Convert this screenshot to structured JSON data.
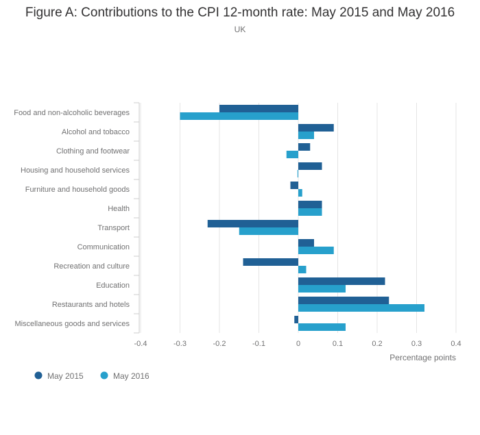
{
  "chart_data": {
    "type": "bar",
    "orientation": "horizontal",
    "title": "Figure A: Contributions to the CPI 12-month rate: May 2015 and May 2016",
    "subtitle": "UK",
    "xlabel": "Percentage points",
    "ylabel": "",
    "xlim": [
      -0.4,
      0.4
    ],
    "ticks": [
      "-0.4",
      "-0.3",
      "-0.2",
      "-0.1",
      "0",
      "0.1",
      "0.2",
      "0.3",
      "0.4"
    ],
    "tick_values": [
      -0.4,
      -0.3,
      -0.2,
      -0.1,
      0,
      0.1,
      0.2,
      0.3,
      0.4
    ],
    "grid": true,
    "legend_position": "bottom-left",
    "categories": [
      "Food and non-alcoholic beverages",
      "Alcohol and tobacco",
      "Clothing and footwear",
      "Housing and household services",
      "Furniture and household goods",
      "Health",
      "Transport",
      "Communication",
      "Recreation and culture",
      "Education",
      "Restaurants and hotels",
      "Miscellaneous goods and services"
    ],
    "series": [
      {
        "name": "May 2015",
        "color": "#206095",
        "values": [
          -0.2,
          0.09,
          0.03,
          0.06,
          -0.02,
          0.06,
          -0.23,
          0.04,
          -0.14,
          0.22,
          0.23,
          -0.01
        ]
      },
      {
        "name": "May 2016",
        "color": "#27a0cc",
        "values": [
          -0.3,
          0.04,
          -0.03,
          -0.002,
          0.01,
          0.06,
          -0.15,
          0.09,
          0.02,
          0.12,
          0.32,
          0.12
        ]
      }
    ]
  }
}
